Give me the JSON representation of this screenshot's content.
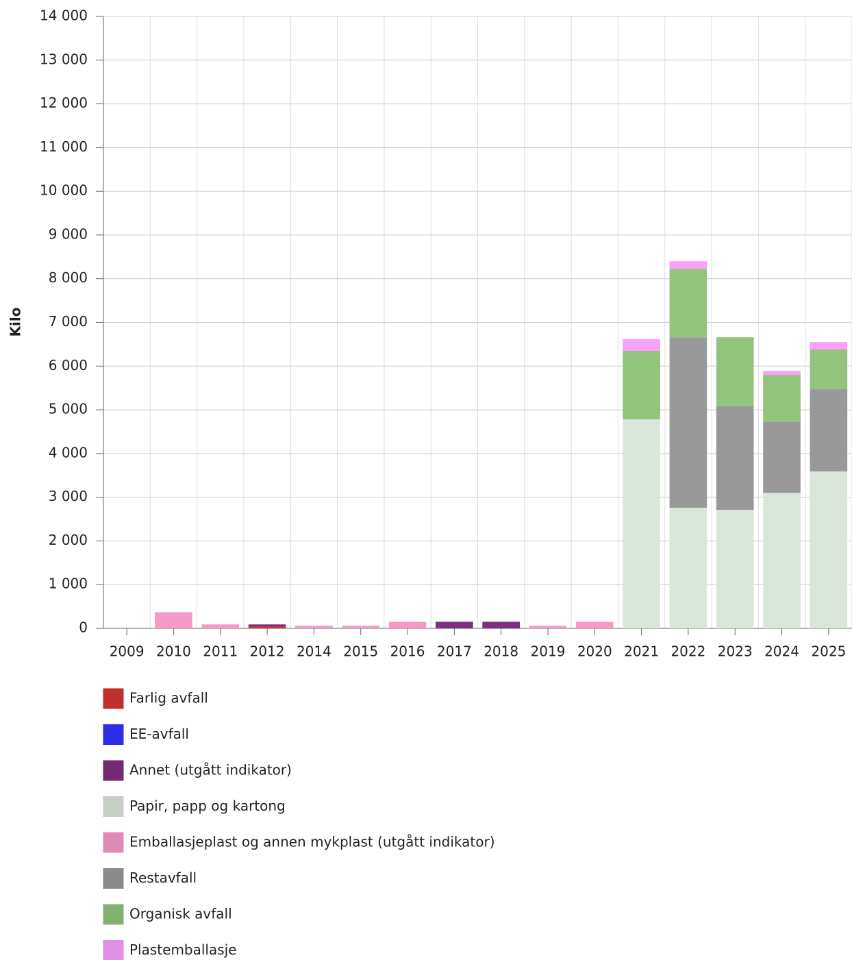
{
  "chart_data": {
    "type": "bar",
    "stacked": true,
    "ylabel": "Kilo",
    "categories": [
      "2009",
      "2010",
      "2011",
      "2012",
      "2014",
      "2015",
      "2016",
      "2017",
      "2018",
      "2019",
      "2020",
      "2021",
      "2022",
      "2023",
      "2024",
      "2025"
    ],
    "ylim": [
      0,
      14000
    ],
    "yticks": [
      0,
      {
        "value": 1000,
        "label": "1 000"
      },
      {
        "value": 2000,
        "label": "2 000"
      },
      {
        "value": 3000,
        "label": "3 000"
      },
      {
        "value": 4000,
        "label": "4 000"
      },
      {
        "value": 5000,
        "label": "5 000"
      },
      {
        "value": 6000,
        "label": "6 000"
      },
      {
        "value": 7000,
        "label": "7 000"
      },
      {
        "value": 8000,
        "label": "8 000"
      },
      {
        "value": 9000,
        "label": "9 000"
      },
      {
        "value": 10000,
        "label": "10 000"
      },
      {
        "value": 11000,
        "label": "11 000"
      },
      {
        "value": 12000,
        "label": "12 000"
      },
      {
        "value": 13000,
        "label": "13 000"
      },
      {
        "value": 14000,
        "label": "14 000"
      }
    ],
    "grid": true,
    "series": [
      {
        "name": "Farlig avfall",
        "color": "#d63535",
        "values": [
          null,
          null,
          null,
          40,
          null,
          null,
          null,
          null,
          null,
          null,
          null,
          null,
          null,
          null,
          null,
          null
        ]
      },
      {
        "name": "EE-avfall",
        "color": "#3333ff",
        "values": [
          null,
          null,
          null,
          null,
          null,
          null,
          null,
          null,
          null,
          null,
          null,
          null,
          null,
          null,
          null,
          null
        ]
      },
      {
        "name": "Annet (utgått indikator)",
        "color": "#7f2f7f",
        "values": [
          null,
          null,
          null,
          50,
          null,
          null,
          null,
          150,
          150,
          null,
          null,
          null,
          null,
          null,
          null,
          null
        ]
      },
      {
        "name": "Papir, papp og kartong",
        "color": "#dbe6da",
        "values": [
          null,
          null,
          null,
          null,
          null,
          null,
          null,
          null,
          null,
          null,
          null,
          4780,
          2760,
          2710,
          3100,
          3590
        ]
      },
      {
        "name": "Emballasjeplast og annen mykplast (utgått indikator)",
        "color": "#f59ac8",
        "values": [
          null,
          370,
          90,
          null,
          60,
          60,
          150,
          null,
          null,
          60,
          150,
          null,
          null,
          null,
          null,
          null
        ]
      },
      {
        "name": "Restavfall",
        "color": "#999999",
        "values": [
          null,
          null,
          null,
          null,
          null,
          null,
          null,
          null,
          null,
          null,
          null,
          null,
          3900,
          2370,
          1630,
          1880
        ]
      },
      {
        "name": "Organisk avfall",
        "color": "#93c47d",
        "values": [
          null,
          null,
          null,
          null,
          null,
          null,
          null,
          null,
          null,
          null,
          null,
          1570,
          1570,
          1580,
          1070,
          910
        ]
      },
      {
        "name": "Plastemballasje",
        "color": "#f9a0f9",
        "values": [
          null,
          null,
          null,
          null,
          null,
          null,
          null,
          null,
          null,
          null,
          null,
          265,
          170,
          null,
          90,
          170
        ]
      }
    ]
  }
}
